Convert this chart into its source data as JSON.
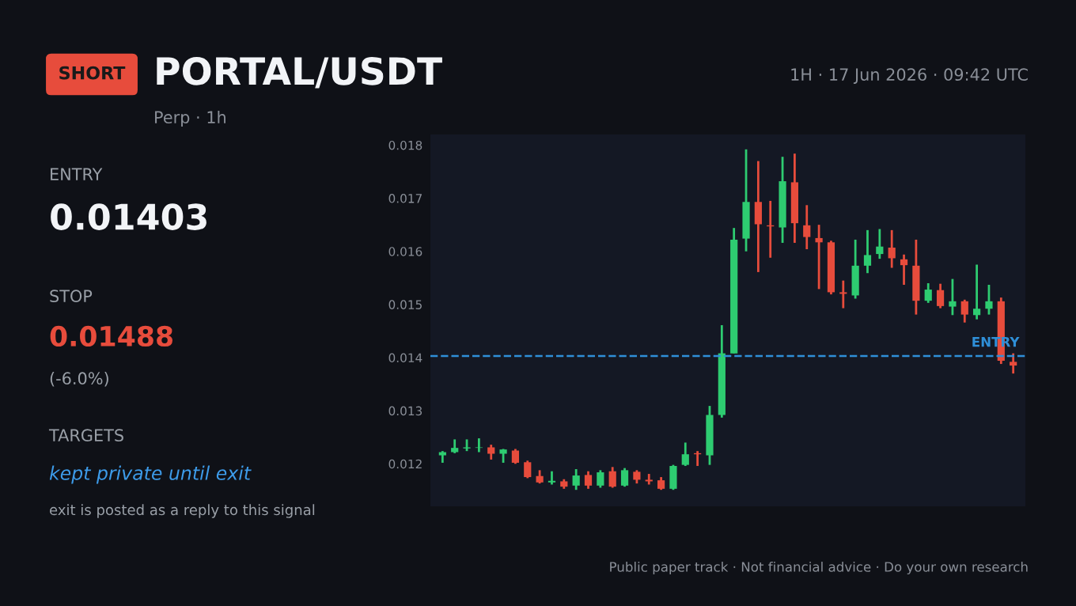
{
  "chart_data": {
    "type": "candlestick",
    "title": "PORTAL/USDT",
    "subtitle": "Perp · 1h",
    "annotations": [
      "SHORT",
      "1H · 17 Jun 2026 · 09:42 UTC",
      "ENTRY",
      "0.01403",
      "STOP",
      "0.01488",
      "(-6.0%)",
      "TARGETS",
      "kept private until exit",
      "exit is posted as a reply to this signal",
      "Public paper track · Not financial advice · Do your own research"
    ],
    "categories": [
      null,
      null,
      null,
      null,
      null,
      null,
      null,
      null,
      null,
      null,
      null,
      null,
      null,
      null,
      null,
      null,
      null,
      null,
      null,
      null,
      null,
      null,
      null,
      null,
      null,
      null,
      null,
      null,
      null,
      null,
      null,
      null,
      null,
      null,
      null,
      null,
      null,
      null,
      null,
      null,
      null,
      null,
      null,
      null,
      null,
      null,
      null,
      null
    ],
    "ohlc": [
      [
        0.01216,
        0.01224,
        0.01202,
        0.01222
      ],
      [
        0.01222,
        0.01246,
        0.0122,
        0.0123
      ],
      [
        0.01229,
        0.01246,
        0.01224,
        0.01231
      ],
      [
        0.0123,
        0.01248,
        0.01222,
        0.01231
      ],
      [
        0.01231,
        0.01236,
        0.01208,
        0.01219
      ],
      [
        0.01219,
        0.01228,
        0.01202,
        0.01227
      ],
      [
        0.01225,
        0.01228,
        0.012,
        0.01202
      ],
      [
        0.01203,
        0.01206,
        0.01173,
        0.01175
      ],
      [
        0.01177,
        0.01188,
        0.01163,
        0.01165
      ],
      [
        0.01165,
        0.01186,
        0.01161,
        0.01168
      ],
      [
        0.01167,
        0.01171,
        0.01153,
        0.01157
      ],
      [
        0.01159,
        0.0119,
        0.01151,
        0.01178
      ],
      [
        0.01179,
        0.01186,
        0.01153,
        0.01159
      ],
      [
        0.01159,
        0.01188,
        0.01155,
        0.01184
      ],
      [
        0.01186,
        0.01194,
        0.01155,
        0.01157
      ],
      [
        0.01159,
        0.01192,
        0.01157,
        0.01188
      ],
      [
        0.01185,
        0.01188,
        0.01163,
        0.0117
      ],
      [
        0.0117,
        0.01181,
        0.01161,
        0.01167
      ],
      [
        0.01169,
        0.01175,
        0.01151,
        0.01153
      ],
      [
        0.01153,
        0.01198,
        0.01151,
        0.01196
      ],
      [
        0.01198,
        0.0124,
        0.01196,
        0.01218
      ],
      [
        0.0122,
        0.01224,
        0.01196,
        0.01218
      ],
      [
        0.01216,
        0.01309,
        0.01198,
        0.01292
      ],
      [
        0.01292,
        0.01461,
        0.01287,
        0.01408
      ],
      [
        0.01408,
        0.01644,
        0.01408,
        0.01622
      ],
      [
        0.01624,
        0.01792,
        0.016,
        0.01693
      ],
      [
        0.01693,
        0.0177,
        0.01561,
        0.01651
      ],
      [
        0.01649,
        0.01695,
        0.01588,
        0.01647
      ],
      [
        0.01645,
        0.01778,
        0.01616,
        0.01732
      ],
      [
        0.0173,
        0.01784,
        0.01616,
        0.01653
      ],
      [
        0.01649,
        0.01687,
        0.01604,
        0.01627
      ],
      [
        0.01625,
        0.0165,
        0.01529,
        0.01617
      ],
      [
        0.01617,
        0.0162,
        0.01519,
        0.01523
      ],
      [
        0.01523,
        0.01545,
        0.01493,
        0.0152
      ],
      [
        0.01517,
        0.01622,
        0.01511,
        0.01573
      ],
      [
        0.01573,
        0.0164,
        0.01559,
        0.01593
      ],
      [
        0.01595,
        0.01642,
        0.01586,
        0.01609
      ],
      [
        0.01607,
        0.0164,
        0.01569,
        0.01587
      ],
      [
        0.01585,
        0.01594,
        0.01537,
        0.01574
      ],
      [
        0.01573,
        0.01622,
        0.01481,
        0.01507
      ],
      [
        0.01507,
        0.0154,
        0.01503,
        0.01528
      ],
      [
        0.01527,
        0.01539,
        0.01493,
        0.01497
      ],
      [
        0.01496,
        0.01548,
        0.0148,
        0.01506
      ],
      [
        0.01506,
        0.01509,
        0.01466,
        0.01481
      ],
      [
        0.0148,
        0.01575,
        0.01472,
        0.01492
      ],
      [
        0.01492,
        0.01537,
        0.01481,
        0.01506
      ],
      [
        0.01506,
        0.01513,
        0.01388,
        0.01394
      ],
      [
        0.01392,
        0.01408,
        0.0137,
        0.01385
      ]
    ],
    "colors": [
      "#2ecc71",
      "#2ecc71",
      "#2ecc71",
      "#2ecc71",
      "#e74c3c",
      "#2ecc71",
      "#e74c3c",
      "#e74c3c",
      "#e74c3c",
      "#2ecc71",
      "#e74c3c",
      "#2ecc71",
      "#e74c3c",
      "#2ecc71",
      "#e74c3c",
      "#2ecc71",
      "#e74c3c",
      "#e74c3c",
      "#e74c3c",
      "#2ecc71",
      "#2ecc71",
      "#e74c3c",
      "#2ecc71",
      "#2ecc71",
      "#2ecc71",
      "#2ecc71",
      "#e74c3c",
      "#e74c3c",
      "#2ecc71",
      "#e74c3c",
      "#e74c3c",
      "#e74c3c",
      "#e74c3c",
      "#e74c3c",
      "#2ecc71",
      "#2ecc71",
      "#2ecc71",
      "#e74c3c",
      "#e74c3c",
      "#e74c3c",
      "#2ecc71",
      "#e74c3c",
      "#2ecc71",
      "#e74c3c",
      "#2ecc71",
      "#2ecc71",
      "#e74c3c",
      "#e74c3c"
    ],
    "ylim": [
      0.0112,
      0.0182
    ],
    "yticks": [
      0.012,
      0.013,
      0.014,
      0.015,
      0.016,
      0.017,
      0.018
    ],
    "tick_labels": "y",
    "ref_lines": [
      {
        "axis": "y",
        "value": 0.01403,
        "label": "ENTRY",
        "color": "#2f8fd8",
        "line_style": "dashed"
      }
    ]
  }
}
